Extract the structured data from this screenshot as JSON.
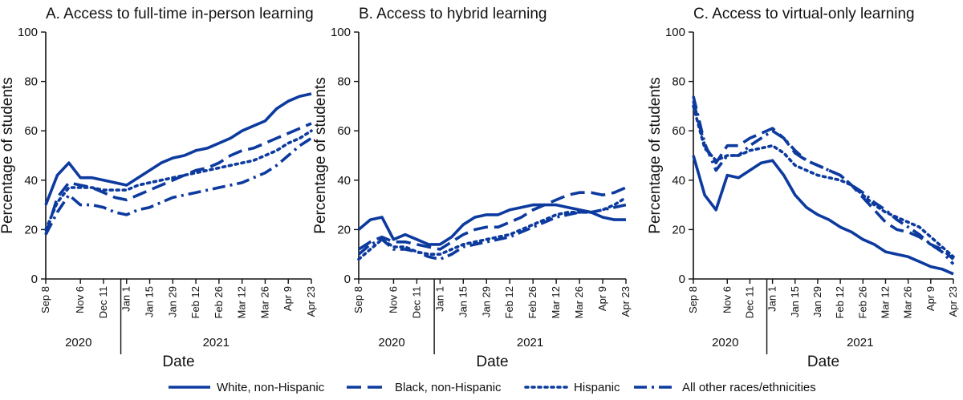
{
  "chart_data": [
    {
      "type": "line",
      "title": "A. Access to full-time in-person learning",
      "xlabel": "Date",
      "ylabel": "Percentage of students",
      "ylim": [
        0,
        100
      ],
      "yticks": [
        "0",
        "20",
        "40",
        "60",
        "80",
        "100"
      ],
      "xticks": [
        "Sep 8",
        "Nov 6",
        "Dec 11",
        "Jan 1",
        "Jan 15",
        "Jan 29",
        "Feb 12",
        "Feb 26",
        "Mar 12",
        "Mar 26",
        "Apr 9",
        "Apr 23"
      ],
      "years": [
        "2020",
        "2021"
      ],
      "x": [
        "Sep 8",
        "Oct 2",
        "Oct 16",
        "Nov 6",
        "Nov 20",
        "Dec 11",
        "Dec 18",
        "Jan 1",
        "Jan 8",
        "Jan 15",
        "Jan 22",
        "Jan 29",
        "Feb 5",
        "Feb 12",
        "Feb 19",
        "Feb 26",
        "Mar 5",
        "Mar 12",
        "Mar 19",
        "Mar 26",
        "Apr 2",
        "Apr 9",
        "Apr 16",
        "Apr 23"
      ],
      "series": [
        {
          "name": "White, non-Hispanic",
          "style": "solid",
          "values": [
            30,
            42,
            47,
            41,
            41,
            40,
            39,
            38,
            41,
            44,
            47,
            49,
            50,
            52,
            53,
            55,
            57,
            60,
            62,
            64,
            69,
            72,
            74,
            75
          ]
        },
        {
          "name": "Black, non-Hispanic",
          "style": "dashed",
          "values": [
            18,
            33,
            39,
            38,
            37,
            35,
            33,
            32,
            34,
            36,
            38,
            40,
            42,
            44,
            45,
            47,
            50,
            52,
            53,
            55,
            57,
            59,
            61,
            63
          ]
        },
        {
          "name": "Hispanic",
          "style": "dotted",
          "values": [
            20,
            31,
            37,
            37,
            37,
            36,
            36,
            36,
            38,
            39,
            40,
            41,
            42,
            43,
            44,
            45,
            46,
            47,
            48,
            50,
            52,
            55,
            57,
            60
          ]
        },
        {
          "name": "All other races/ethnicities",
          "style": "dashdot",
          "values": [
            18,
            27,
            34,
            30,
            30,
            29,
            27,
            26,
            28,
            29,
            31,
            33,
            34,
            35,
            36,
            37,
            38,
            39,
            41,
            43,
            46,
            50,
            54,
            57
          ]
        }
      ]
    },
    {
      "type": "line",
      "title": "B. Access to hybrid learning",
      "xlabel": "Date",
      "ylabel": "Percentage of students",
      "ylim": [
        0,
        100
      ],
      "yticks": [
        "0",
        "20",
        "40",
        "60",
        "80",
        "100"
      ],
      "xticks": [
        "Sep 8",
        "Nov 6",
        "Dec 11",
        "Jan 1",
        "Jan 15",
        "Jan 29",
        "Feb 12",
        "Feb 26",
        "Mar 12",
        "Mar 26",
        "Apr 9",
        "Apr 23"
      ],
      "years": [
        "2020",
        "2021"
      ],
      "x": [
        "Sep 8",
        "Oct 2",
        "Oct 16",
        "Nov 6",
        "Nov 20",
        "Dec 11",
        "Dec 18",
        "Jan 1",
        "Jan 8",
        "Jan 15",
        "Jan 22",
        "Jan 29",
        "Feb 5",
        "Feb 12",
        "Feb 19",
        "Feb 26",
        "Mar 5",
        "Mar 12",
        "Mar 19",
        "Mar 26",
        "Apr 2",
        "Apr 9",
        "Apr 16",
        "Apr 23"
      ],
      "series": [
        {
          "name": "White, non-Hispanic",
          "style": "solid",
          "values": [
            20,
            24,
            25,
            16,
            18,
            16,
            14,
            14,
            17,
            22,
            25,
            26,
            26,
            28,
            29,
            30,
            30,
            30,
            29,
            28,
            27,
            25,
            24,
            24
          ]
        },
        {
          "name": "Black, non-Hispanic",
          "style": "dashed",
          "values": [
            12,
            15,
            17,
            15,
            15,
            14,
            13,
            12,
            15,
            18,
            20,
            21,
            21,
            23,
            25,
            28,
            30,
            32,
            34,
            35,
            35,
            34,
            35,
            37
          ]
        },
        {
          "name": "Hispanic",
          "style": "dotted",
          "values": [
            8,
            12,
            16,
            13,
            13,
            11,
            10,
            10,
            12,
            14,
            15,
            16,
            17,
            18,
            20,
            22,
            24,
            26,
            27,
            27,
            27,
            28,
            30,
            33
          ]
        },
        {
          "name": "All other races/ethnicities",
          "style": "dashdot",
          "values": [
            10,
            14,
            16,
            12,
            12,
            11,
            9,
            8,
            10,
            13,
            14,
            15,
            16,
            17,
            19,
            21,
            23,
            25,
            26,
            27,
            27,
            28,
            29,
            30
          ]
        }
      ]
    },
    {
      "type": "line",
      "title": "C. Access to virtual-only learning",
      "xlabel": "Date",
      "ylabel": "Percentage of students",
      "ylim": [
        0,
        100
      ],
      "yticks": [
        "0",
        "20",
        "40",
        "60",
        "80",
        "100"
      ],
      "xticks": [
        "Sep 8",
        "Nov 6",
        "Dec 11",
        "Jan 1",
        "Jan 15",
        "Jan 29",
        "Feb 12",
        "Feb 26",
        "Mar 12",
        "Mar 26",
        "Apr 9",
        "Apr 23"
      ],
      "years": [
        "2020",
        "2021"
      ],
      "x": [
        "Sep 8",
        "Oct 2",
        "Oct 16",
        "Nov 6",
        "Nov 20",
        "Dec 11",
        "Dec 18",
        "Jan 1",
        "Jan 8",
        "Jan 15",
        "Jan 22",
        "Jan 29",
        "Feb 5",
        "Feb 12",
        "Feb 19",
        "Feb 26",
        "Mar 5",
        "Mar 12",
        "Mar 19",
        "Mar 26",
        "Apr 2",
        "Apr 9",
        "Apr 16",
        "Apr 23"
      ],
      "series": [
        {
          "name": "White, non-Hispanic",
          "style": "solid",
          "values": [
            50,
            34,
            28,
            42,
            41,
            44,
            47,
            48,
            42,
            34,
            29,
            26,
            24,
            21,
            19,
            16,
            14,
            11,
            10,
            9,
            7,
            5,
            4,
            2
          ]
        },
        {
          "name": "Black, non-Hispanic",
          "style": "dashed",
          "values": [
            72,
            54,
            47,
            54,
            54,
            57,
            59,
            61,
            57,
            51,
            48,
            46,
            44,
            42,
            38,
            33,
            28,
            23,
            20,
            19,
            17,
            14,
            12,
            8
          ]
        },
        {
          "name": "Hispanic",
          "style": "dotted",
          "values": [
            70,
            53,
            48,
            50,
            50,
            52,
            53,
            54,
            51,
            46,
            44,
            42,
            41,
            40,
            38,
            34,
            30,
            27,
            25,
            23,
            21,
            17,
            13,
            9
          ]
        },
        {
          "name": "All other races/ethnicities",
          "style": "dashdot",
          "values": [
            74,
            55,
            44,
            50,
            50,
            54,
            57,
            60,
            57,
            52,
            48,
            46,
            44,
            42,
            38,
            35,
            31,
            28,
            24,
            21,
            18,
            14,
            11,
            6
          ]
        }
      ]
    }
  ],
  "legend": {
    "placement": "bottom",
    "items": [
      {
        "label": "White, non-Hispanic",
        "style": "solid"
      },
      {
        "label": "Black, non-Hispanic",
        "style": "dashed"
      },
      {
        "label": "Hispanic",
        "style": "dotted"
      },
      {
        "label": "All other races/ethnicities",
        "style": "dashdot"
      }
    ]
  },
  "colors": {
    "line": "#0c3a9e",
    "axis": "#111111"
  }
}
